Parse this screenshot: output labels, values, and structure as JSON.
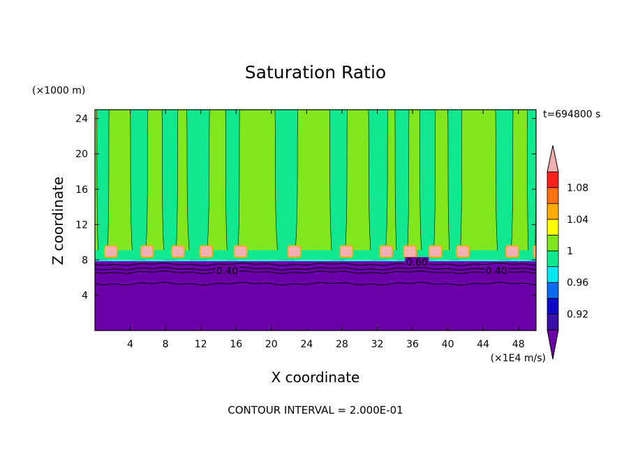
{
  "chart_data": {
    "type": "heatmap",
    "title": "Saturation Ratio",
    "xlabel": "X coordinate",
    "ylabel": "Z coordinate",
    "x_unit": "(×1E4 m/s)",
    "y_unit": "(×1000 m)",
    "time_label": "t=694800 s",
    "footer": "CONTOUR INTERVAL = 2.000E-01",
    "xlim": [
      0,
      50
    ],
    "ylim": [
      0,
      25
    ],
    "x_ticks": [
      4,
      8,
      12,
      16,
      20,
      24,
      28,
      32,
      36,
      40,
      44,
      48
    ],
    "y_ticks": [
      4,
      8,
      12,
      16,
      20,
      24
    ],
    "colorbar": {
      "levels": [
        0.9,
        0.92,
        0.94,
        0.96,
        0.98,
        1.0,
        1.02,
        1.04,
        1.06,
        1.08,
        1.1
      ],
      "tick_labels": [
        "0.92",
        "0.96",
        "1",
        "1.04",
        "1.08"
      ],
      "tick_values": [
        0.92,
        0.96,
        1.0,
        1.04,
        1.08
      ],
      "colors": [
        "#3a10a8",
        "#0a0ac8",
        "#0a6cf0",
        "#00e8f0",
        "#10e890",
        "#80e61e",
        "#ffff00",
        "#ffaa00",
        "#ff7010",
        "#ff2020"
      ],
      "under_color": "#6a00a6",
      "over_color": "#f4b0b0"
    },
    "contour_labels": [
      {
        "text": "0.40",
        "x": 15.0,
        "y": 6.6
      },
      {
        "text": "0.60",
        "x": 36.5,
        "y": 7.6
      },
      {
        "text": "0.40",
        "x": 45.5,
        "y": 6.6
      }
    ],
    "regions": {
      "lower_subsaturated_top_z": 7.9,
      "cloud_layer_z": [
        8.0,
        9.6
      ],
      "upper_plume_columns_x": [
        [
          0.2,
          1.6
        ],
        [
          4.0,
          6.0
        ],
        [
          7.6,
          9.4
        ],
        [
          10.4,
          13.0
        ],
        [
          14.8,
          16.4
        ],
        [
          20.4,
          23.0
        ],
        [
          26.6,
          28.6
        ],
        [
          31.0,
          33.2
        ],
        [
          34.0,
          35.6
        ],
        [
          36.8,
          38.6
        ],
        [
          40.0,
          41.6
        ],
        [
          45.4,
          47.4
        ],
        [
          49.0,
          50.0
        ]
      ]
    }
  }
}
